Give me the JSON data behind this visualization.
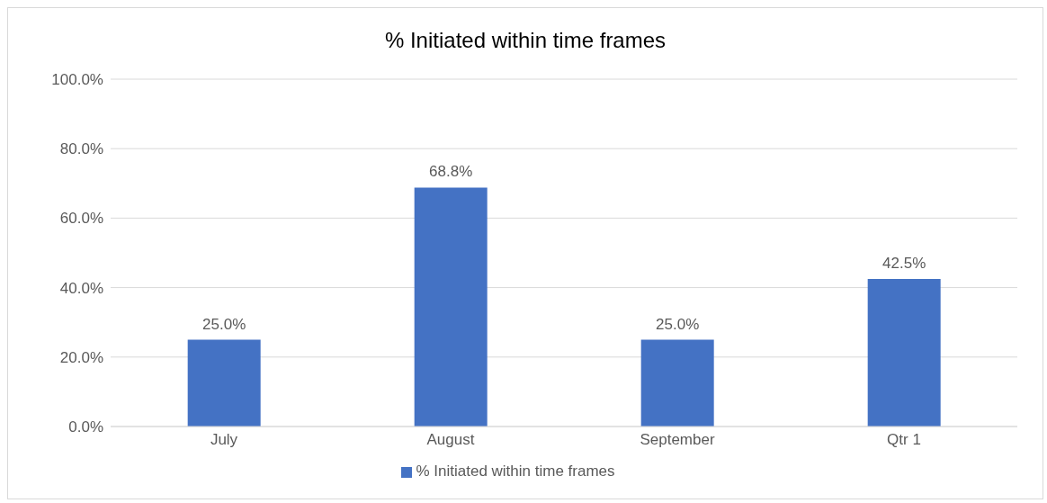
{
  "chart_data": {
    "type": "bar",
    "title": "% Initiated within time frames",
    "categories": [
      "July",
      "August",
      "September",
      "Qtr 1"
    ],
    "series": [
      {
        "name": "% Initiated within time frames",
        "color": "#4472c4",
        "values": [
          25.0,
          68.8,
          25.0,
          42.5
        ],
        "value_labels": [
          "25.0%",
          "68.8%",
          "25.0%",
          "42.5%"
        ]
      }
    ],
    "ylim": [
      0,
      100
    ],
    "yticks": [
      {
        "value": 0,
        "label": "0.0%"
      },
      {
        "value": 20,
        "label": "20.0%"
      },
      {
        "value": 40,
        "label": "40.0%"
      },
      {
        "value": 60,
        "label": "60.0%"
      },
      {
        "value": 80,
        "label": "80.0%"
      },
      {
        "value": 100,
        "label": "100.0%"
      }
    ],
    "grid": "y",
    "legend": "bottom"
  }
}
